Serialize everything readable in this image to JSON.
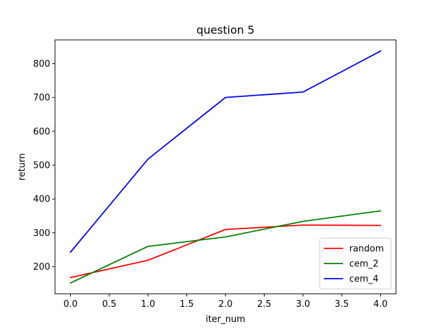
{
  "chart_data": {
    "type": "line",
    "title": "question 5",
    "xlabel": "iter_num",
    "ylabel": "return",
    "x": [
      0,
      1,
      2,
      3,
      4
    ],
    "xlim": [
      -0.2,
      4.2
    ],
    "ylim": [
      120,
      870
    ],
    "xticks": [
      0.0,
      0.5,
      1.0,
      1.5,
      2.0,
      2.5,
      3.0,
      3.5,
      4.0
    ],
    "xtick_labels": [
      "0.0",
      "0.5",
      "1.0",
      "1.5",
      "2.0",
      "2.5",
      "3.0",
      "3.5",
      "4.0"
    ],
    "yticks": [
      200,
      300,
      400,
      500,
      600,
      700,
      800
    ],
    "ytick_labels": [
      "200",
      "300",
      "400",
      "500",
      "600",
      "700",
      "800"
    ],
    "grid": false,
    "legend_position": "lower-right",
    "series": [
      {
        "name": "random",
        "color": "#ff0000",
        "values": [
          168,
          219,
          310,
          323,
          322
        ]
      },
      {
        "name": "cem_2",
        "color": "#008000",
        "values": [
          152,
          260,
          288,
          334,
          365
        ]
      },
      {
        "name": "cem_4",
        "color": "#0000ff",
        "values": [
          243,
          518,
          700,
          716,
          837
        ]
      }
    ]
  }
}
